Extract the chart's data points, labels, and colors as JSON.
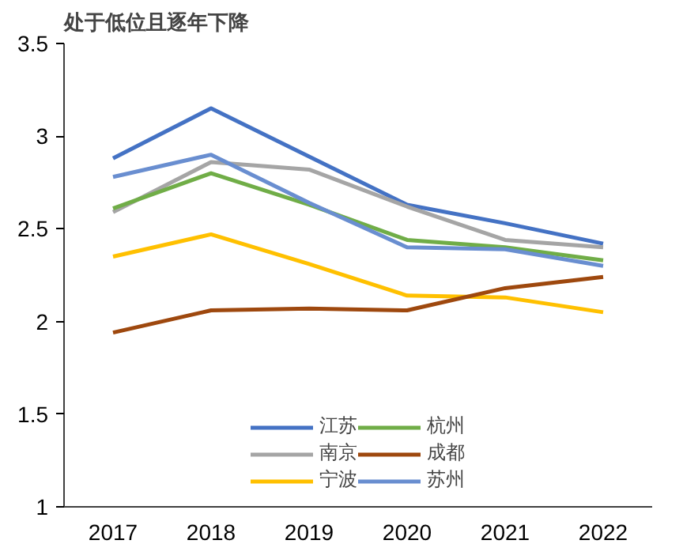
{
  "chart_data": {
    "type": "line",
    "title": "处于低位且逐年下降",
    "categories": [
      "2017",
      "2018",
      "2019",
      "2020",
      "2021",
      "2022"
    ],
    "series": [
      {
        "name": "江苏",
        "color": "#4472c4",
        "values": [
          2.88,
          3.15,
          2.89,
          2.63,
          2.53,
          2.42
        ]
      },
      {
        "name": "南京",
        "color": "#a5a5a5",
        "values": [
          2.59,
          2.86,
          2.82,
          2.62,
          2.44,
          2.4
        ]
      },
      {
        "name": "宁波",
        "color": "#ffc000",
        "values": [
          2.35,
          2.47,
          2.31,
          2.14,
          2.13,
          2.05
        ]
      },
      {
        "name": "杭州",
        "color": "#70ad47",
        "values": [
          2.61,
          2.8,
          2.63,
          2.44,
          2.4,
          2.33
        ]
      },
      {
        "name": "成都",
        "color": "#9e480e",
        "values": [
          1.94,
          2.06,
          2.07,
          2.06,
          2.18,
          2.24
        ]
      },
      {
        "name": "苏州",
        "color": "#698ed0",
        "values": [
          2.78,
          2.9,
          2.64,
          2.4,
          2.39,
          2.3
        ]
      }
    ],
    "ylim": [
      1,
      3.5
    ],
    "yticks": [
      1,
      1.5,
      2,
      2.5,
      3,
      3.5
    ],
    "grid": false,
    "legend": "bottom",
    "marker": "none",
    "line_style": "solid"
  }
}
